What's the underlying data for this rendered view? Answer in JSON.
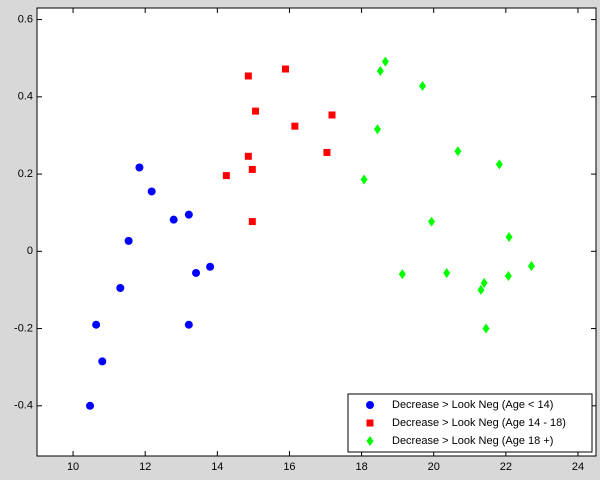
{
  "chart_data": {
    "type": "scatter",
    "xlim": [
      9,
      24.5
    ],
    "ylim": [
      -0.53,
      0.63
    ],
    "xticks": [
      10,
      12,
      14,
      16,
      18,
      20,
      22,
      24
    ],
    "yticks": [
      -0.4,
      -0.2,
      0,
      0.2,
      0.4,
      0.6
    ],
    "legend": "bottom-right",
    "series": [
      {
        "name": "Decrease > Look Neg (Age < 14)",
        "color": "#0000ff",
        "marker": "circle",
        "x": [
          11.84,
          12.18,
          11.54,
          11.31,
          10.64,
          10.81,
          10.47,
          12.79,
          13.21,
          13.41,
          13.8,
          13.21
        ],
        "values": [
          0.217,
          0.155,
          0.027,
          -0.095,
          -0.19,
          -0.285,
          -0.4,
          0.082,
          0.095,
          -0.056,
          -0.04,
          -0.19
        ]
      },
      {
        "name": "Decrease > Look Neg (Age 14 - 18)",
        "color": "#ff0000",
        "marker": "square",
        "x": [
          14.86,
          15.89,
          15.06,
          16.15,
          17.18,
          14.86,
          14.97,
          14.25,
          17.04,
          14.97
        ],
        "values": [
          0.454,
          0.472,
          0.363,
          0.324,
          0.353,
          0.246,
          0.212,
          0.196,
          0.256,
          0.077
        ]
      },
      {
        "name": "Decrease > Look Neg (Age 18 +)",
        "color": "#00ff00",
        "marker": "diamond",
        "x": [
          18.66,
          18.52,
          19.69,
          18.44,
          20.67,
          21.82,
          18.07,
          19.94,
          22.09,
          19.13,
          20.36,
          22.07,
          22.71,
          21.4,
          21.31,
          21.45
        ],
        "values": [
          0.491,
          0.467,
          0.428,
          0.316,
          0.259,
          0.225,
          0.186,
          0.077,
          0.037,
          -0.059,
          -0.056,
          -0.064,
          -0.038,
          -0.082,
          -0.1,
          -0.2
        ]
      }
    ]
  }
}
